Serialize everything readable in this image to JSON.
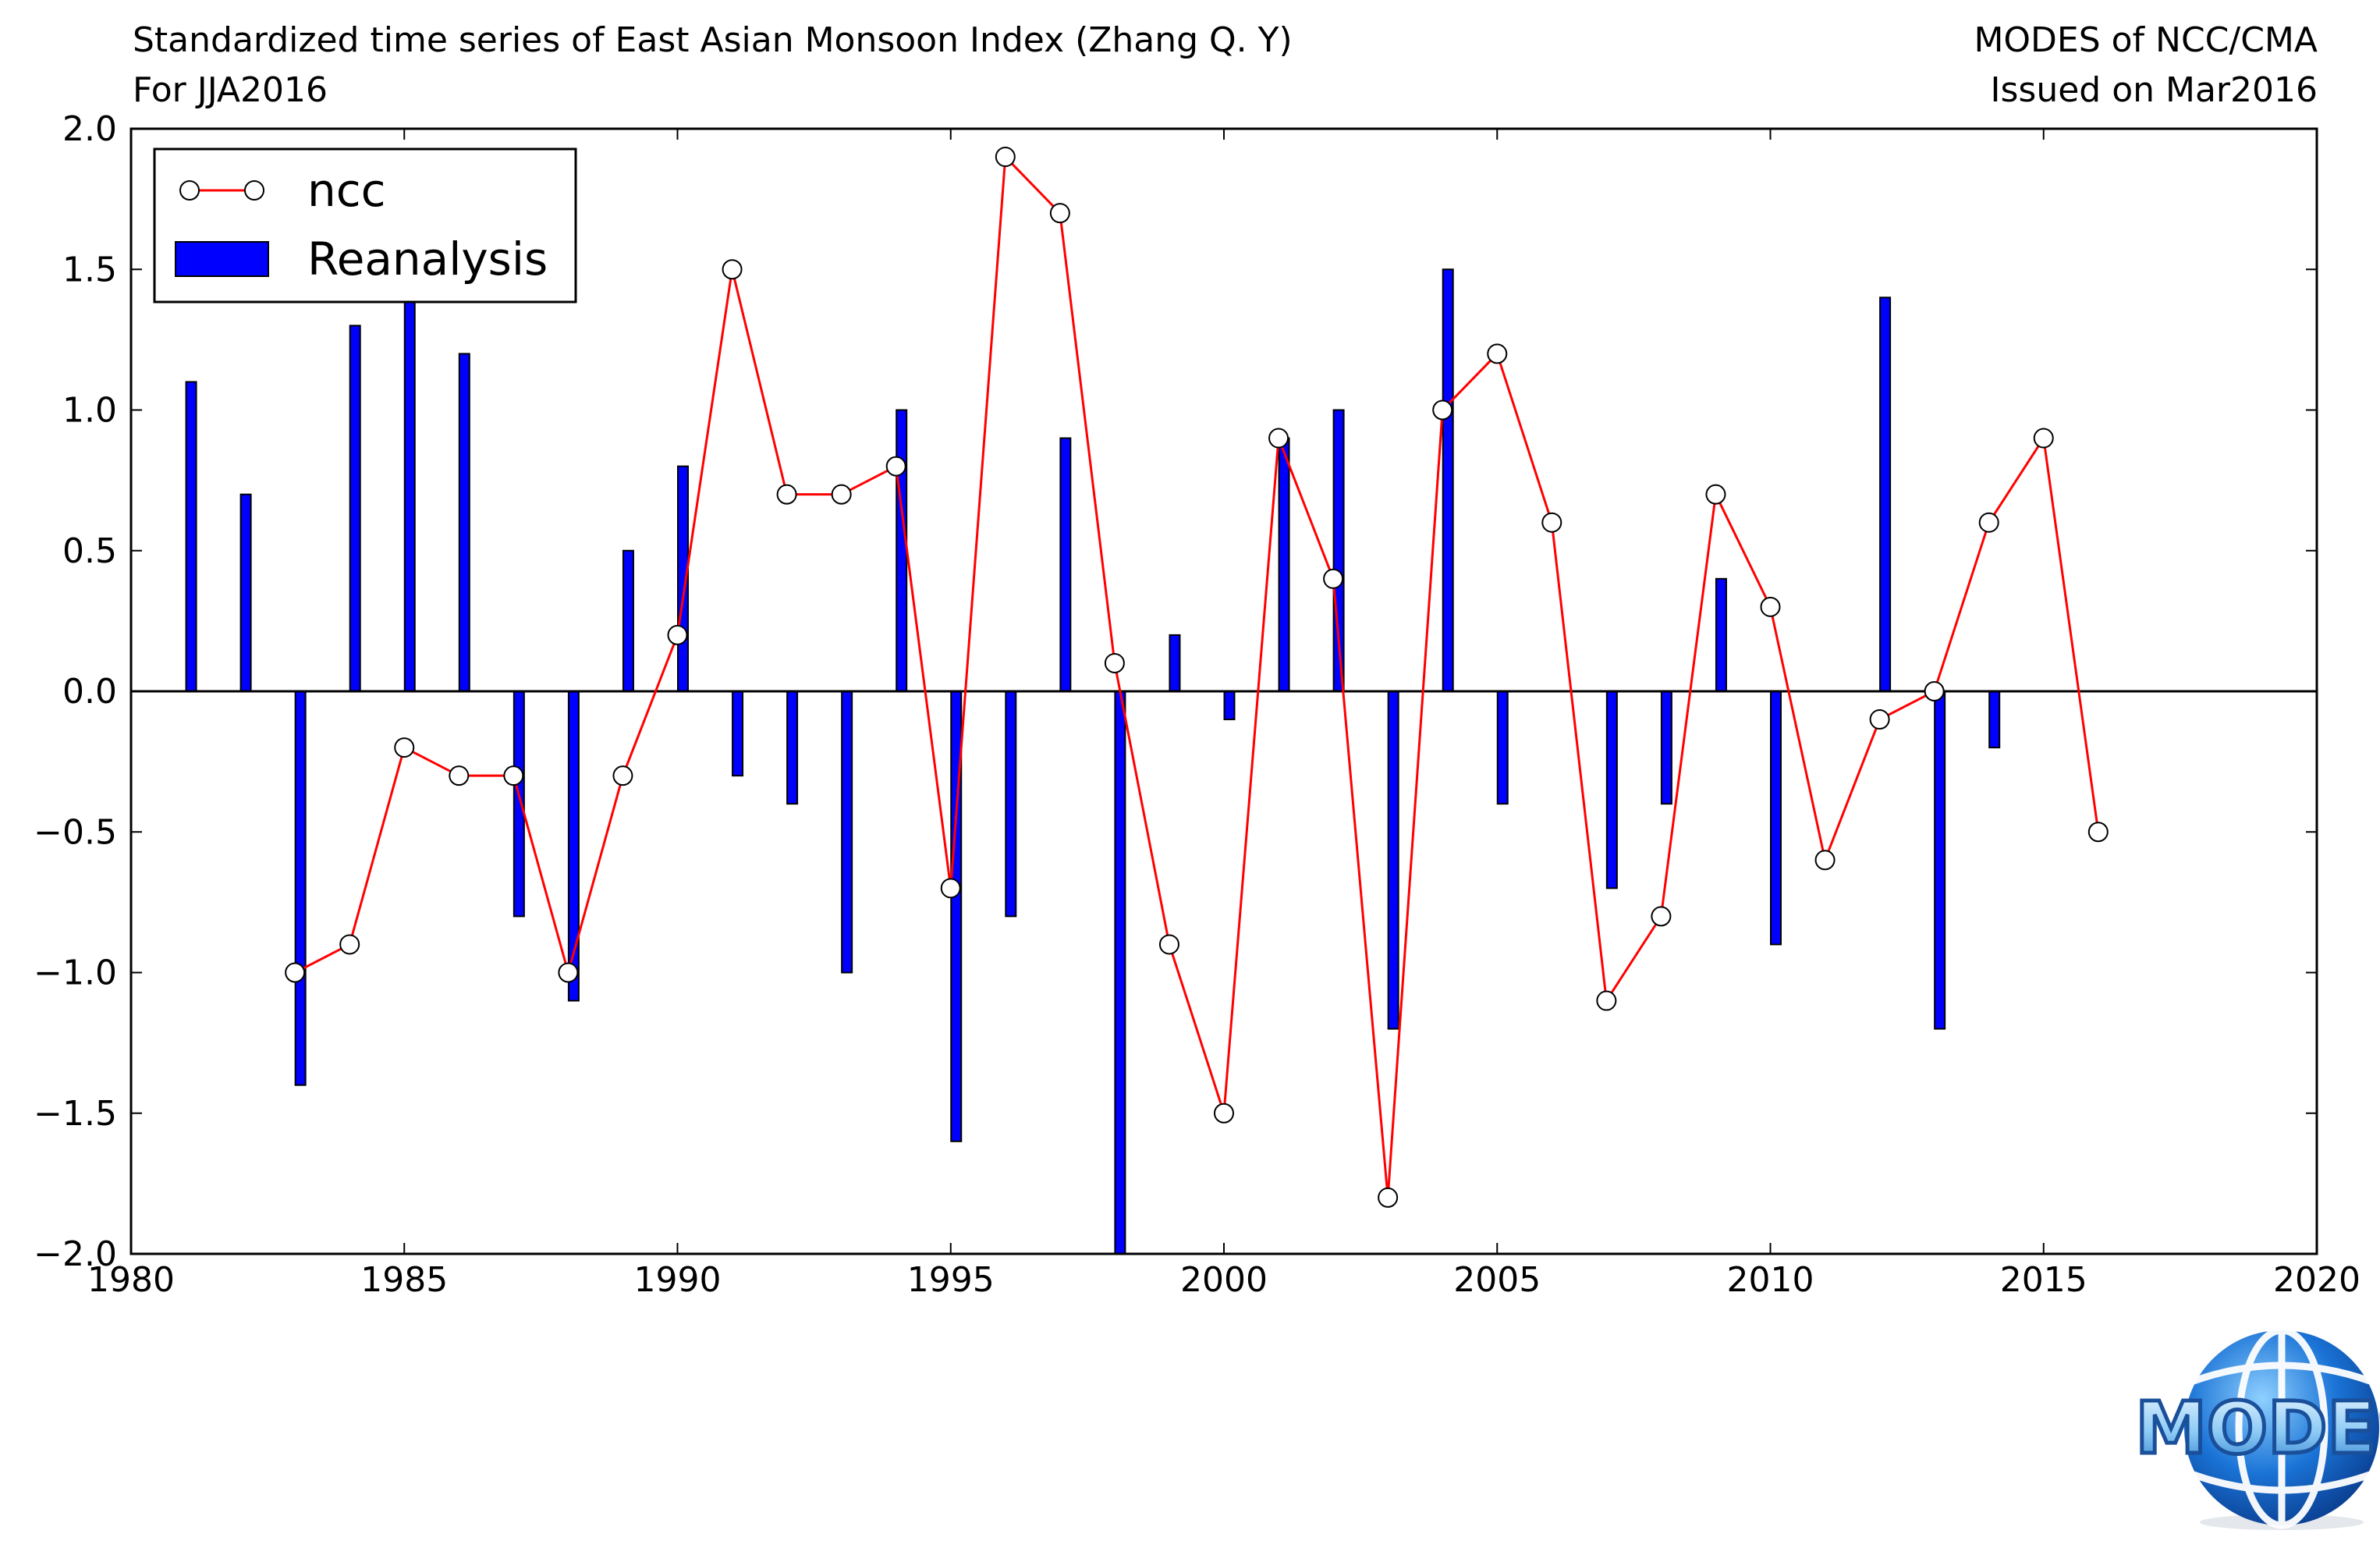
{
  "header": {
    "title_line1": "Standardized time series of East Asian Monsoon Index (Zhang Q. Y)",
    "title_line2": "For JJA2016",
    "org": "MODES of NCC/CMA",
    "issued": "Issued on Mar2016"
  },
  "logo": {
    "text": "MODES",
    "primary_color": "#1a5fb4",
    "accent_color": "#5fb3f0"
  },
  "colors": {
    "bars": "#0000ff",
    "line": "#ff0000",
    "marker_fill": "#ffffff",
    "axis": "#000000"
  },
  "chart_data": {
    "type": "bar",
    "x_ticks": [
      1980,
      1985,
      1990,
      1995,
      2000,
      2005,
      2010,
      2015,
      2020
    ],
    "y_ticks": [
      2.0,
      1.5,
      1.0,
      0.5,
      0.0,
      -0.5,
      -1.0,
      -1.5,
      -2.0
    ],
    "y_tick_labels": [
      "2.0",
      "1.5",
      "1.0",
      "0.5",
      "0.0",
      "−0.5",
      "−1.0",
      "−1.5",
      "−2.0"
    ],
    "xlim": [
      1980,
      2020
    ],
    "ylim": [
      -2.0,
      2.0
    ],
    "legend": {
      "placement": "top-left",
      "entries": [
        "ncc",
        "Reanalysis"
      ]
    },
    "series": [
      {
        "name": "Reanalysis",
        "kind": "bar",
        "x": [
          1981,
          1982,
          1983,
          1984,
          1985,
          1986,
          1987,
          1988,
          1989,
          1990,
          1991,
          1992,
          1993,
          1994,
          1995,
          1996,
          1997,
          1998,
          1999,
          2000,
          2001,
          2002,
          2003,
          2004,
          2005,
          2006,
          2007,
          2008,
          2009,
          2010,
          2011,
          2012,
          2013,
          2014
        ],
        "values": [
          1.1,
          0.7,
          -1.4,
          1.3,
          1.4,
          1.2,
          -0.8,
          -1.1,
          0.5,
          0.8,
          -0.3,
          -0.4,
          -1.0,
          1.0,
          -1.6,
          -0.8,
          0.9,
          -2.0,
          0.2,
          -0.1,
          0.9,
          1.0,
          -1.2,
          1.5,
          -0.4,
          0.0,
          -0.7,
          -0.4,
          0.4,
          -0.9,
          0.0,
          1.4,
          -1.2,
          -0.2
        ]
      },
      {
        "name": "ncc",
        "kind": "line",
        "x": [
          1983,
          1984,
          1985,
          1986,
          1987,
          1988,
          1989,
          1990,
          1991,
          1992,
          1993,
          1994,
          1995,
          1996,
          1997,
          1998,
          1999,
          2000,
          2001,
          2002,
          2003,
          2004,
          2005,
          2006,
          2007,
          2008,
          2009,
          2010,
          2011,
          2012,
          2013,
          2014,
          2015,
          2016
        ],
        "values": [
          -1.0,
          -0.9,
          -0.2,
          -0.3,
          -0.3,
          -1.0,
          -0.3,
          0.2,
          1.5,
          0.7,
          0.7,
          0.8,
          -0.7,
          1.9,
          1.7,
          0.1,
          -0.9,
          -1.5,
          0.9,
          0.4,
          -1.8,
          1.0,
          1.2,
          0.6,
          -1.1,
          -0.8,
          0.7,
          0.3,
          -0.6,
          -0.1,
          0.0,
          0.6,
          0.9,
          -0.5
        ]
      }
    ]
  }
}
